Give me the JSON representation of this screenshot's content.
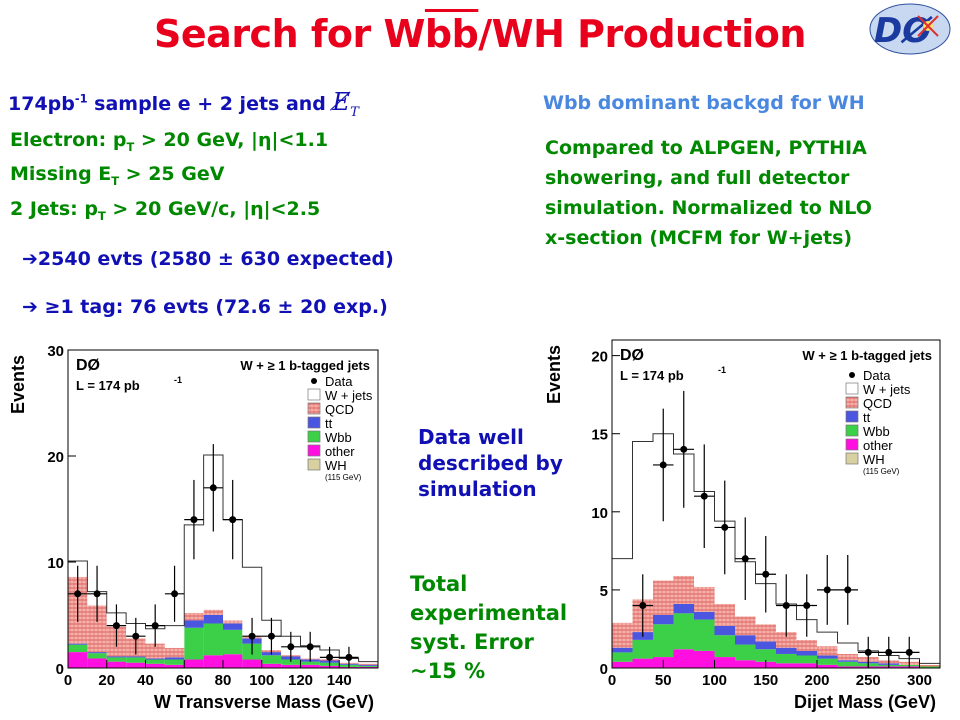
{
  "title": {
    "part1": "Search for W",
    "bb": "bb",
    "part2": "/WH Production"
  },
  "header_left": {
    "sample": "174pb",
    "sample_sup": "-1",
    "rest": " sample  e + 2 jets and "
  },
  "header_right": "Wbb dominant backgd for WH",
  "cuts": [
    {
      "line": "Electron: p_T > 20 GeV,  |η|<1.1"
    },
    {
      "line": "Missing E_T > 25 GeV"
    },
    {
      "line": "2 Jets:  p_T > 20 GeV/c, |η|<2.5"
    }
  ],
  "cut_text": {
    "c1a": "Electron: p",
    "c1b": "T",
    "c1c": " > 20 GeV,  |η|<1.1",
    "c2a": "Missing E",
    "c2b": "T",
    "c2c": " > 25 GeV",
    "c3a": "2 Jets:  p",
    "c3b": "T",
    "c3c": " > 20 GeV/c, |η|<2.5"
  },
  "results": {
    "r1": "2540 evts  (2580 ± 630 expected)",
    "r2": "≥1 tag:  76 evts   (72.6 ± 20 exp.)",
    "arrow": "➔"
  },
  "comparison": [
    "Compared to ALPGEN, PYTHIA",
    "showering, and full detector",
    "simulation. Normalized to NLO",
    "x-section (MCFM for W+jets)"
  ],
  "notes": {
    "data_well": [
      "Data well",
      "described by",
      "simulation"
    ],
    "syst": [
      "Total",
      "experimental",
      "syst. Error",
      "~15 %"
    ]
  },
  "legend": {
    "title": "W + ≥ 1 b-tagged jets",
    "experiment": "DØ",
    "lumi": "L = 174 pb",
    "lumi_sup": "-1",
    "entries": [
      "Data",
      "W + jets",
      "QCD",
      "tt",
      "Wbb",
      "other",
      "WH"
    ],
    "mass_note": "(115 GeV)"
  },
  "colors": {
    "title": "#e8001c",
    "blue_text": "#1010b4",
    "green_text": "#008800",
    "light_blue_text": "#4a88e0",
    "qcd": "#f4b0a8",
    "tt": "#4a55e0",
    "wbb": "#3ccf48",
    "other": "#ff10e0",
    "wh": "#d8d0a0"
  },
  "chart_data": [
    {
      "type": "bar",
      "title": "",
      "xlabel": "W Transverse Mass (GeV)",
      "ylabel": "Events",
      "xlim": [
        0,
        160
      ],
      "ylim": [
        0,
        30
      ],
      "xticks": [
        0,
        20,
        40,
        60,
        80,
        100,
        120,
        140
      ],
      "yticks": [
        0,
        10,
        20,
        30
      ],
      "bin_edges": [
        0,
        10,
        20,
        30,
        40,
        50,
        60,
        70,
        80,
        90,
        100,
        110,
        120,
        130,
        140,
        150,
        160
      ],
      "stack": [
        {
          "name": "other",
          "values": [
            1.5,
            0.9,
            0.6,
            0.5,
            0.4,
            0.3,
            0.8,
            1.2,
            1.3,
            0.8,
            0.4,
            0.3,
            0.3,
            0.2,
            0.1,
            0.1
          ]
        },
        {
          "name": "Wbb",
          "values": [
            0.7,
            0.5,
            0.4,
            0.5,
            0.4,
            0.5,
            3.0,
            3.0,
            2.3,
            1.5,
            0.8,
            0.5,
            0.3,
            0.3,
            0.2,
            0.1
          ]
        },
        {
          "name": "tt",
          "values": [
            0.1,
            0.1,
            0.1,
            0.1,
            0.1,
            0.2,
            0.7,
            0.8,
            0.6,
            0.5,
            0.3,
            0.3,
            0.2,
            0.2,
            0.1,
            0.1
          ]
        },
        {
          "name": "QCD",
          "values": [
            6.3,
            4.4,
            2.8,
            1.7,
            1.4,
            0.9,
            0.7,
            0.5,
            0.3,
            0.2,
            0.2,
            0.1,
            0.1,
            0.1,
            0.1,
            0.1
          ]
        },
        {
          "name": "W + jets",
          "values": [
            1.5,
            1.3,
            1.3,
            1.4,
            1.4,
            2.1,
            8.3,
            14.6,
            9.5,
            6.5,
            2.8,
            1.8,
            1.2,
            0.9,
            0.4,
            0.2
          ]
        }
      ],
      "data": {
        "x": [
          5,
          15,
          25,
          35,
          45,
          55,
          65,
          75,
          85,
          95,
          105,
          115,
          125,
          135,
          145
        ],
        "y": [
          7,
          7,
          4,
          3,
          4,
          7,
          14,
          17,
          14,
          3,
          3,
          2,
          2,
          1,
          1
        ]
      }
    },
    {
      "type": "bar",
      "title": "",
      "xlabel": "Dijet Mass  (GeV)",
      "ylabel": "Events",
      "xlim": [
        0,
        320
      ],
      "ylim": [
        0,
        21
      ],
      "xticks": [
        0,
        50,
        100,
        150,
        200,
        250,
        300
      ],
      "yticks": [
        0,
        5,
        10,
        15,
        20
      ],
      "bin_edges": [
        0,
        20,
        40,
        60,
        80,
        100,
        120,
        140,
        160,
        180,
        200,
        220,
        240,
        260,
        280,
        300,
        320
      ],
      "stack": [
        {
          "name": "other",
          "values": [
            0.4,
            0.6,
            0.7,
            1.2,
            1.1,
            0.7,
            0.5,
            0.4,
            0.3,
            0.3,
            0.2,
            0.1,
            0.1,
            0.1,
            0.1,
            0.0
          ]
        },
        {
          "name": "Wbb",
          "values": [
            0.6,
            1.2,
            2.1,
            2.3,
            2.0,
            1.4,
            1.0,
            0.8,
            0.6,
            0.5,
            0.4,
            0.3,
            0.2,
            0.1,
            0.1,
            0.1
          ]
        },
        {
          "name": "tt",
          "values": [
            0.3,
            0.5,
            0.6,
            0.6,
            0.5,
            0.6,
            0.6,
            0.5,
            0.4,
            0.3,
            0.2,
            0.1,
            0.1,
            0.1,
            0.0,
            0.0
          ]
        },
        {
          "name": "QCD",
          "values": [
            1.6,
            2.1,
            2.2,
            1.8,
            1.6,
            1.4,
            1.2,
            1.1,
            1.0,
            0.7,
            0.6,
            0.4,
            0.3,
            0.2,
            0.2,
            0.1
          ]
        },
        {
          "name": "W + jets",
          "values": [
            4.1,
            10.1,
            9.4,
            7.8,
            6.1,
            5.3,
            3.5,
            2.6,
            1.8,
            1.3,
            0.9,
            0.7,
            0.4,
            0.3,
            0.2,
            0.1
          ]
        }
      ],
      "data": {
        "x": [
          30,
          50,
          70,
          90,
          110,
          130,
          150,
          170,
          190,
          210,
          230,
          250,
          270,
          290
        ],
        "y": [
          4,
          13,
          14,
          11,
          9,
          7,
          6,
          4,
          4,
          5,
          5,
          1,
          1,
          1
        ]
      }
    }
  ]
}
